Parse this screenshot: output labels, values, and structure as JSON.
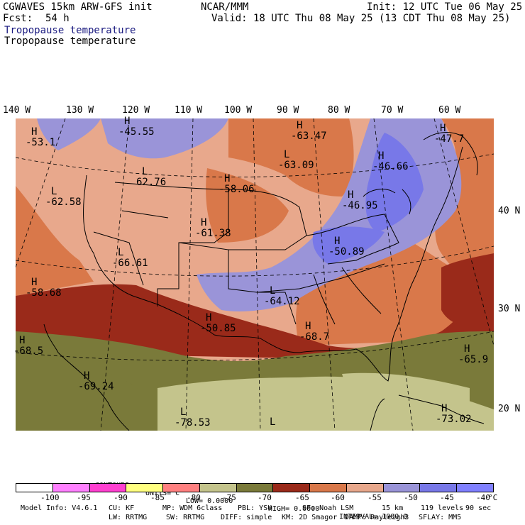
{
  "header": {
    "model": "CGWAVES 15km ARW-GFS init",
    "org": "NCAR/MMM",
    "init": "Init: 12 UTC Tue 06 May 25",
    "fcst_label": "Fcst:",
    "fcst_hours": "54 h",
    "valid": "Valid: 18 UTC Thu 08 May 25 (13 CDT Thu 08 May 25)",
    "field_title_1": "Tropopause temperature",
    "field_title_2": "Tropopause temperature"
  },
  "longitude_labels": [
    "140 W",
    "130 W",
    "120 W",
    "110 W",
    "100 W",
    "90 W",
    "80 W",
    "70 W",
    "60 W"
  ],
  "latitude_labels": [
    "40 N",
    "30 N",
    "20 N"
  ],
  "pressure_centers": [
    {
      "type": "H",
      "value": "-53.1"
    },
    {
      "type": "H",
      "value": "-45.55"
    },
    {
      "type": "H",
      "value": "-63.47"
    },
    {
      "type": "H",
      "value": "-47.7"
    },
    {
      "type": "L",
      "value": "-62.58"
    },
    {
      "type": "L",
      "value": "62.76"
    },
    {
      "type": "H",
      "value": "-58.06"
    },
    {
      "type": "L",
      "value": "-63.09"
    },
    {
      "type": "H",
      "value": "-46.66"
    },
    {
      "type": "H",
      "value": "-46.95"
    },
    {
      "type": "H",
      "value": "-61.38"
    },
    {
      "type": "H",
      "value": "-50.89"
    },
    {
      "type": "L",
      "value": "-66.61"
    },
    {
      "type": "H",
      "value": "-58.68"
    },
    {
      "type": "L",
      "value": "-64.12"
    },
    {
      "type": "H",
      "value": "-50.85"
    },
    {
      "type": "H",
      "value": "-68.7"
    },
    {
      "type": "H",
      "value": "-68.5"
    },
    {
      "type": "H",
      "value": "-65.9"
    },
    {
      "type": "H",
      "value": "-69.24"
    },
    {
      "type": "L",
      "value": "-78.53"
    },
    {
      "type": "L",
      "value": ""
    },
    {
      "type": "H",
      "value": "-73.02"
    }
  ],
  "contour_info": {
    "contours": "CONTOURS:",
    "units": "UNITS=°C",
    "low": "LOW= 0.0000",
    "high": "HIGH= 0.0000",
    "interval": "INTERVAL= 1000.0"
  },
  "colorbar": {
    "colors": [
      "#ffffff",
      "#ff80ff",
      "#ff40d0",
      "#ffff80",
      "#ff8080",
      "#c4c48c",
      "#7a7a3a",
      "#9a2a1a",
      "#d9784a",
      "#e8a88c",
      "#9a94d8",
      "#7878e8",
      "#8080ff"
    ],
    "tick_labels": [
      "-100",
      "-95",
      "-90",
      "-85",
      "-80",
      "-75",
      "-70",
      "-65",
      "-60",
      "-55",
      "-50",
      "-45",
      "-40",
      "°C"
    ]
  },
  "model_info": {
    "line1": [
      "Model Info: V4.6.1",
      "CU: KF",
      "MP: WDM 6class",
      "PBL: YSU",
      "SF: Noah LSM",
      "15 km",
      "119 levels",
      "90 sec"
    ],
    "line2": [
      "LW: RRTMG",
      "SW: RRTMG",
      "DIFF: simple",
      "KM: 2D Smagor",
      "DAMP: Rayleigh3",
      "SFLAY: MM5"
    ]
  }
}
